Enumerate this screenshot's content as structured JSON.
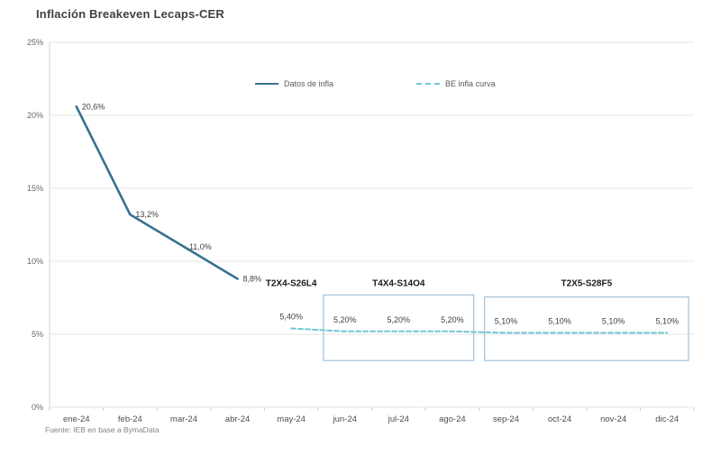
{
  "header": {
    "title": "Inflación Breakeven Lecaps-CER"
  },
  "footer": {
    "source": "Fuente: IEB en base a BymaData"
  },
  "chart_data": {
    "type": "line",
    "title": "Inflación Breakeven Lecaps-CER",
    "categories": [
      "ene-24",
      "feb-24",
      "mar-24",
      "abr-24",
      "may-24",
      "jun-24",
      "jul-24",
      "ago-24",
      "sep-24",
      "oct-24",
      "nov-24",
      "dic-24"
    ],
    "ylim": [
      0,
      25
    ],
    "yticks": [
      0,
      5,
      10,
      15,
      20,
      25
    ],
    "ytick_labels": [
      "0%",
      "5%",
      "10%",
      "15%",
      "20%",
      "25%"
    ],
    "grid": true,
    "legend_position": "top-center",
    "series": [
      {
        "name": "Datos de infla",
        "style": "solid",
        "color": "#39718f",
        "width": 2.6,
        "label_position": "right",
        "x_indices": [
          0,
          1,
          2,
          3
        ],
        "values": [
          20.6,
          13.2,
          11.0,
          8.8
        ],
        "labels": [
          "20,6%",
          "13,2%",
          "11,0%",
          "8,8%"
        ]
      },
      {
        "name": "BE infla curva",
        "style": "dashed",
        "color": "#72c8d6",
        "width": 2,
        "label_position": "above",
        "x_indices": [
          4,
          5,
          6,
          7,
          8,
          9,
          10,
          11
        ],
        "values": [
          5.4,
          5.2,
          5.2,
          5.2,
          5.1,
          5.1,
          5.1,
          5.1
        ],
        "labels": [
          "5,40%",
          "5,20%",
          "5,20%",
          "5,20%",
          "5,10%",
          "5,10%",
          "5,10%",
          "5,10%"
        ]
      }
    ],
    "annotations": [
      {
        "text": "T2X4-S26L4",
        "between": [
          4,
          4
        ],
        "y": 8.3
      },
      {
        "text": "T4X4-S14O4",
        "between": [
          5,
          7
        ],
        "y": 8.3
      },
      {
        "text": "T2X5-S28F5",
        "between": [
          8,
          11
        ],
        "y": 8.3
      }
    ],
    "boxes": [
      {
        "from_index": 5,
        "to_index": 7,
        "y_range": [
          3.2,
          7.7
        ],
        "color": "#92b5d2"
      },
      {
        "from_index": 8,
        "to_index": 11,
        "y_range": [
          3.2,
          7.55
        ],
        "color": "#92b5d2"
      }
    ]
  }
}
